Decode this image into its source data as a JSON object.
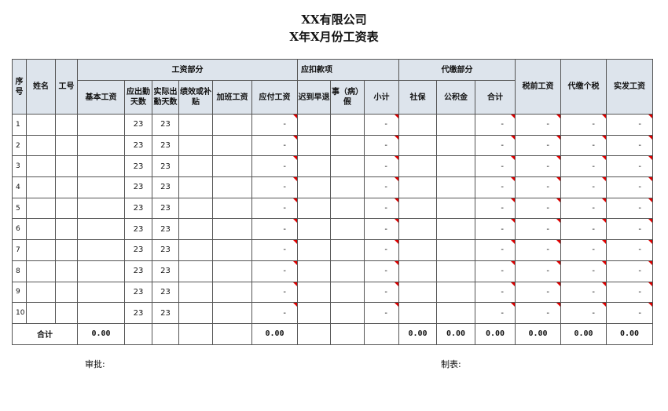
{
  "title": {
    "company": "XX有限公司",
    "subtitle": "X年X月份工资表"
  },
  "headers": {
    "index": "序号",
    "name": "姓名",
    "id": "工号",
    "group_wage": "工资部分",
    "group_deduct": "应扣款项",
    "group_proxy": "代缴部分",
    "base": "基本工资",
    "due_days": "应出勤天数",
    "actual_days": "实际出勤天数",
    "perf": "绩效或补贴",
    "overtime": "加班工资",
    "payable": "应付工资",
    "late": "迟到早退",
    "leave": "事（病）假",
    "subtotal": "小计",
    "social": "社保",
    "fund": "公积金",
    "proxy_total": "合计",
    "pretax": "税前工资",
    "tax": "代缴个税",
    "net": "实发工资"
  },
  "rows": [
    {
      "no": "1",
      "due": "23",
      "actual": "23",
      "dash": "-"
    },
    {
      "no": "2",
      "due": "23",
      "actual": "23",
      "dash": "-"
    },
    {
      "no": "3",
      "due": "23",
      "actual": "23",
      "dash": "-"
    },
    {
      "no": "4",
      "due": "23",
      "actual": "23",
      "dash": "-"
    },
    {
      "no": "5",
      "due": "23",
      "actual": "23",
      "dash": "-"
    },
    {
      "no": "6",
      "due": "23",
      "actual": "23",
      "dash": "-"
    },
    {
      "no": "7",
      "due": "23",
      "actual": "23",
      "dash": "-"
    },
    {
      "no": "8",
      "due": "23",
      "actual": "23",
      "dash": "-"
    },
    {
      "no": "9",
      "due": "23",
      "actual": "23",
      "dash": "-"
    },
    {
      "no": "10",
      "due": "23",
      "actual": "23",
      "dash": "-"
    }
  ],
  "total": {
    "label": "合计",
    "base": "0.00",
    "payable": "0.00",
    "social": "0.00",
    "fund": "0.00",
    "proxy_total": "0.00",
    "pretax": "0.00",
    "tax": "0.00",
    "net": "0.00"
  },
  "footer": {
    "approve": "审批:",
    "prepared": "制表:"
  }
}
